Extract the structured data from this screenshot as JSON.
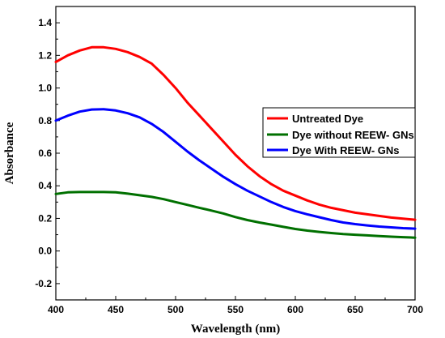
{
  "chart_data": {
    "type": "line",
    "xlabel": "Wavelength (nm)",
    "ylabel": "Absorbance",
    "xlim": [
      400,
      700
    ],
    "ylim": [
      -0.3,
      1.5
    ],
    "xticks": [
      "400",
      "450",
      "500",
      "550",
      "600",
      "650",
      "700"
    ],
    "yticks": [
      "-0.2",
      "0.0",
      "0.2",
      "0.4",
      "0.6",
      "0.8",
      "1.0",
      "1.2",
      "1.4"
    ],
    "legend_position": "right",
    "grid": false,
    "x": [
      400,
      410,
      420,
      430,
      440,
      450,
      460,
      470,
      480,
      490,
      500,
      510,
      520,
      530,
      540,
      550,
      560,
      570,
      580,
      590,
      600,
      610,
      620,
      630,
      640,
      650,
      660,
      670,
      680,
      690,
      700
    ],
    "series": [
      {
        "name": "Untreated Dye",
        "color": "#ff0000",
        "values": [
          1.16,
          1.2,
          1.23,
          1.25,
          1.25,
          1.24,
          1.22,
          1.19,
          1.15,
          1.08,
          1.0,
          0.91,
          0.83,
          0.75,
          0.67,
          0.59,
          0.52,
          0.46,
          0.41,
          0.37,
          0.34,
          0.31,
          0.285,
          0.265,
          0.25,
          0.235,
          0.225,
          0.215,
          0.205,
          0.198,
          0.192
        ]
      },
      {
        "name": "Dye without REEW- GNs",
        "color": "#007000",
        "values": [
          0.35,
          0.36,
          0.362,
          0.362,
          0.362,
          0.36,
          0.352,
          0.342,
          0.332,
          0.318,
          0.3,
          0.283,
          0.265,
          0.248,
          0.23,
          0.208,
          0.19,
          0.175,
          0.162,
          0.148,
          0.135,
          0.125,
          0.117,
          0.11,
          0.104,
          0.1,
          0.096,
          0.092,
          0.088,
          0.085,
          0.082
        ]
      },
      {
        "name": "Dye With REEW- GNs",
        "color": "#0000ff",
        "values": [
          0.8,
          0.83,
          0.855,
          0.868,
          0.87,
          0.862,
          0.845,
          0.82,
          0.78,
          0.73,
          0.67,
          0.61,
          0.555,
          0.505,
          0.455,
          0.41,
          0.37,
          0.335,
          0.3,
          0.27,
          0.245,
          0.225,
          0.207,
          0.19,
          0.175,
          0.165,
          0.157,
          0.15,
          0.145,
          0.14,
          0.137
        ]
      }
    ]
  }
}
